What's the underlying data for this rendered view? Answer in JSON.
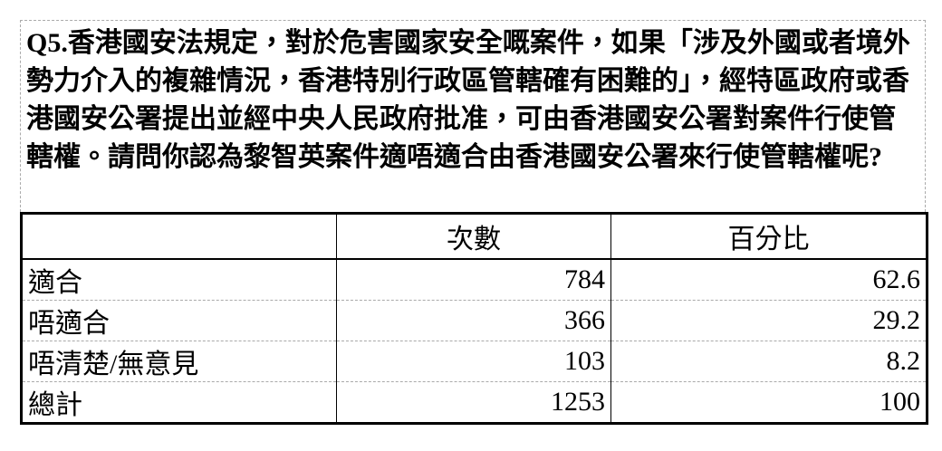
{
  "question": "Q5.香港國安法規定，對於危害國家安全嘅案件，如果「涉及外國或者境外勢力介入的複雜情況，香港特別行政區管轄確有困難的」，經特區政府或香港國安公署提出並經中央人民政府批准，可由香港國安公署對案件行使管轄權。請問你認為黎智英案件適唔適合由香港國安公署來行使管轄權呢?",
  "table": {
    "header": [
      "次數",
      "百分比"
    ],
    "rows": [
      [
        "適合",
        784,
        62.6
      ],
      [
        "唔適合",
        366,
        29.2
      ],
      [
        "唔清楚/無意見",
        103,
        8.2
      ],
      [
        "總計",
        1253,
        100
      ]
    ]
  }
}
